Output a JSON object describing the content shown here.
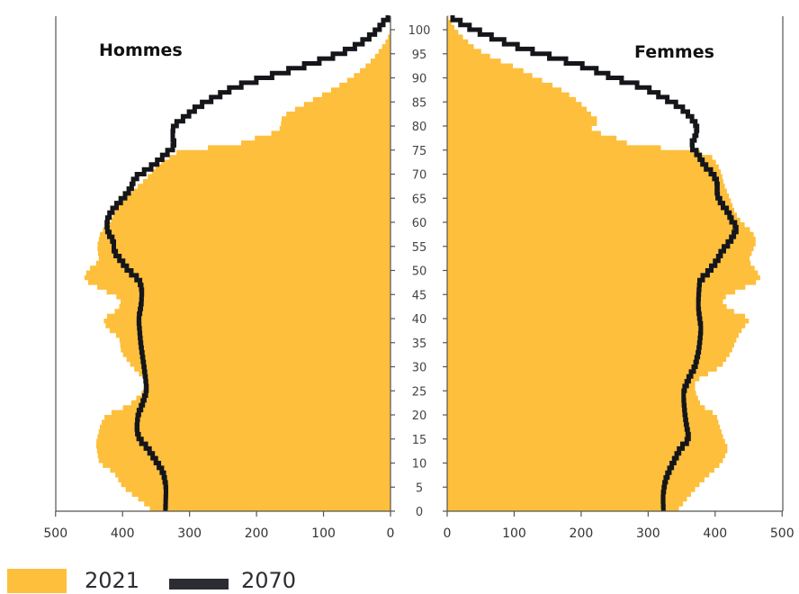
{
  "chart_data": {
    "type": "population-pyramid",
    "panels": [
      {
        "title": "Hommes",
        "side": "left"
      },
      {
        "title": "Femmes",
        "side": "right"
      }
    ],
    "x_ticks": [
      "500",
      "400",
      "300",
      "200",
      "100",
      "0"
    ],
    "x_ticks_right": [
      "0",
      "100",
      "200",
      "300",
      "400",
      "500"
    ],
    "xlim": [
      0,
      500
    ],
    "age_ticks": [
      "0",
      "5",
      "10",
      "15",
      "20",
      "25",
      "30",
      "35",
      "40",
      "45",
      "50",
      "55",
      "60",
      "65",
      "70",
      "75",
      "80",
      "85",
      "90",
      "95",
      "100"
    ],
    "ylim": [
      0,
      103
    ],
    "legend": [
      {
        "label": "2021",
        "style": "area",
        "color": "#FDBF3C"
      },
      {
        "label": "2070",
        "style": "line",
        "color": "#15161a"
      }
    ],
    "series": {
      "hommes_2021": {
        "ages": [
          0,
          2,
          5,
          8,
          10,
          14,
          18,
          20,
          22,
          25,
          26,
          28,
          30,
          33,
          36,
          38,
          40,
          42,
          44,
          46,
          48,
          50,
          52,
          55,
          58,
          60,
          62,
          65,
          68,
          70,
          72,
          74,
          75,
          76,
          77,
          78,
          79,
          80,
          82,
          84,
          86,
          88,
          90,
          92,
          94,
          96,
          98,
          100
        ],
        "values": [
          355,
          372,
          400,
          413,
          435,
          440,
          433,
          425,
          391,
          368,
          359,
          372,
          386,
          402,
          405,
          424,
          429,
          406,
          402,
          431,
          458,
          453,
          435,
          438,
          433,
          418,
          413,
          400,
          373,
          359,
          348,
          324,
          315,
          230,
          216,
          189,
          167,
          164,
          162,
          136,
          109,
          82,
          59,
          41,
          26,
          15,
          5,
          0
        ]
      },
      "hommes_2070": {
        "ages": [
          0,
          5,
          8,
          10,
          13,
          15,
          17,
          20,
          22,
          25,
          28,
          30,
          35,
          40,
          43,
          46,
          48,
          50,
          52,
          54,
          56,
          58,
          60,
          62,
          64,
          66,
          68,
          69,
          70,
          72,
          74,
          76,
          77,
          79,
          80,
          82,
          84,
          86,
          88,
          90,
          92,
          94,
          96,
          98,
          100,
          102,
          103
        ],
        "values": [
          336,
          335,
          339,
          348,
          362,
          375,
          379,
          377,
          371,
          364,
          366,
          368,
          373,
          376,
          372,
          371,
          375,
          391,
          402,
          413,
          413,
          422,
          424,
          418,
          406,
          393,
          384,
          384,
          373,
          352,
          337,
          321,
          325,
          325,
          324,
          305,
          288,
          261,
          234,
          189,
          140,
          95,
          59,
          36,
          19,
          8,
          0
        ]
      },
      "femmes_2021": {
        "ages": [
          0,
          2,
          5,
          8,
          10,
          13,
          15,
          18,
          20,
          22,
          25,
          27,
          28,
          30,
          33,
          35,
          37,
          40,
          42,
          44,
          46,
          48,
          50,
          52,
          54,
          56,
          58,
          60,
          62,
          65,
          68,
          70,
          72,
          74,
          75,
          76,
          78,
          79,
          80,
          81,
          82,
          84,
          86,
          88,
          90,
          92,
          94,
          96,
          98,
          100,
          102,
          103
        ],
        "values": [
          343,
          355,
          373,
          395,
          410,
          420,
          413,
          406,
          402,
          379,
          370,
          370,
          383,
          409,
          424,
          430,
          437,
          453,
          420,
          409,
          437,
          469,
          462,
          450,
          456,
          462,
          456,
          440,
          430,
          422,
          413,
          410,
          404,
          393,
          362,
          276,
          245,
          214,
          218,
          229,
          218,
          205,
          188,
          165,
          134,
          107,
          71,
          44,
          27,
          13,
          4,
          0
        ]
      },
      "femmes_2070": {
        "ages": [
          0,
          3,
          6,
          8,
          10,
          13,
          15,
          18,
          20,
          23,
          25,
          28,
          30,
          33,
          35,
          38,
          40,
          42,
          44,
          46,
          48,
          49,
          51,
          52,
          54,
          56,
          58,
          59,
          60,
          62,
          64,
          66,
          68,
          70,
          72,
          74,
          76,
          77,
          79,
          80,
          82,
          84,
          86,
          88,
          90,
          92,
          94,
          96,
          98,
          100,
          102,
          103
        ],
        "values": [
          323,
          322,
          325,
          330,
          337,
          348,
          361,
          357,
          355,
          353,
          353,
          362,
          370,
          375,
          377,
          379,
          377,
          375,
          375,
          376,
          377,
          386,
          397,
          403,
          410,
          422,
          430,
          433,
          426,
          420,
          409,
          402,
          404,
          397,
          383,
          375,
          363,
          368,
          373,
          373,
          363,
          348,
          322,
          295,
          249,
          214,
          165,
          115,
          75,
          40,
          13,
          3
        ]
      }
    }
  }
}
